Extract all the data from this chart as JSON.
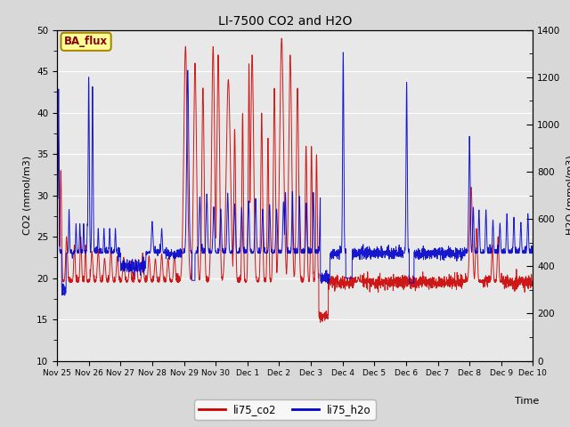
{
  "title": "LI-7500 CO2 and H2O",
  "ylabel_left": "CO2 (mmol/m3)",
  "ylabel_right": "H2O (mmol/m3)",
  "xlabel": "Time",
  "ylim_left": [
    10,
    50
  ],
  "ylim_right": [
    0,
    1400
  ],
  "yticks_left": [
    10,
    15,
    20,
    25,
    30,
    35,
    40,
    45,
    50
  ],
  "yticks_right": [
    0,
    200,
    400,
    600,
    800,
    1000,
    1200,
    1400
  ],
  "fig_bg_color": "#d8d8d8",
  "plot_bg_color": "#e8e8e8",
  "grid_color": "#ffffff",
  "co2_color": "#cc0000",
  "h2o_color": "#0000cc",
  "annotation_text": "BA_flux",
  "annotation_bg": "#ffff99",
  "annotation_border": "#aa8800",
  "legend_co2": "li75_co2",
  "legend_h2o": "li75_h2o",
  "x_tick_labels": [
    "Nov 25",
    "Nov 26",
    "Nov 27",
    "Nov 28",
    "Nov 29",
    "Nov 30",
    "Dec 1",
    "Dec 2",
    "Dec 3",
    "Dec 4",
    "Dec 5",
    "Dec 6",
    "Dec 7",
    "Dec 8",
    "Dec 9",
    "Dec 10"
  ],
  "num_points": 3000,
  "seed": 42
}
